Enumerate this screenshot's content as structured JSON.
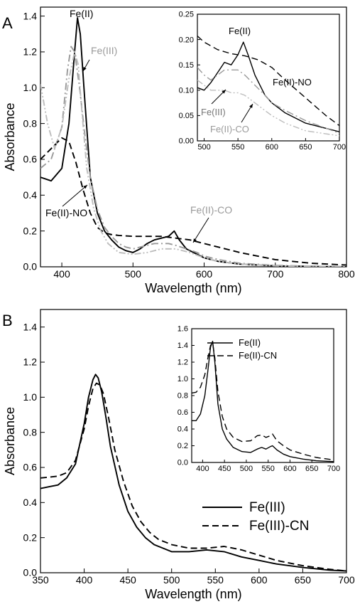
{
  "panel_labels": [
    "A",
    "B"
  ],
  "chart_data": [
    {
      "type": "line",
      "panel": "A",
      "xlabel": "Wavelength (nm)",
      "ylabel": "Absorbance",
      "xlim": [
        370,
        800
      ],
      "ylim": [
        0,
        1.45
      ],
      "xticks": [
        400,
        500,
        600,
        700,
        800
      ],
      "yticks": [
        0.0,
        0.2,
        0.4,
        0.6,
        0.8,
        1.0,
        1.2,
        1.4
      ],
      "grid": false,
      "series": [
        {
          "name": "Fe(II)",
          "color": "#000000",
          "dash": "solid",
          "x": [
            370,
            385,
            400,
            410,
            418,
            422,
            426,
            432,
            440,
            450,
            460,
            470,
            480,
            490,
            500,
            510,
            520,
            530,
            540,
            550,
            558,
            565,
            575,
            590,
            600,
            620,
            650,
            700,
            750,
            800
          ],
          "y": [
            0.5,
            0.48,
            0.55,
            0.8,
            1.2,
            1.39,
            1.3,
            0.95,
            0.5,
            0.3,
            0.2,
            0.15,
            0.11,
            0.09,
            0.08,
            0.1,
            0.13,
            0.15,
            0.16,
            0.17,
            0.2,
            0.15,
            0.1,
            0.07,
            0.05,
            0.03,
            0.015,
            0.005,
            0.002,
            0.0
          ]
        },
        {
          "name": "Fe(III)",
          "color": "#9a9a9a",
          "dash": "dashdot",
          "x": [
            370,
            385,
            400,
            408,
            413,
            418,
            425,
            432,
            440,
            450,
            460,
            470,
            480,
            490,
            500,
            510,
            520,
            530,
            540,
            550,
            560,
            575,
            590,
            600,
            620,
            650,
            700,
            750,
            800
          ],
          "y": [
            0.55,
            0.6,
            0.78,
            1.1,
            1.23,
            1.2,
            1.0,
            0.75,
            0.5,
            0.32,
            0.22,
            0.17,
            0.13,
            0.11,
            0.1,
            0.11,
            0.12,
            0.13,
            0.13,
            0.13,
            0.12,
            0.1,
            0.08,
            0.06,
            0.04,
            0.02,
            0.008,
            0.003,
            0.0
          ]
        },
        {
          "name": "Fe(II)-NO",
          "color": "#000000",
          "dash": "dashed",
          "x": [
            370,
            385,
            400,
            410,
            420,
            430,
            440,
            450,
            460,
            470,
            480,
            500,
            520,
            540,
            560,
            580,
            600,
            620,
            650,
            700,
            750,
            800
          ],
          "y": [
            0.6,
            0.66,
            0.72,
            0.7,
            0.58,
            0.43,
            0.3,
            0.22,
            0.19,
            0.18,
            0.175,
            0.17,
            0.17,
            0.17,
            0.16,
            0.15,
            0.13,
            0.11,
            0.08,
            0.04,
            0.02,
            0.01
          ]
        },
        {
          "name": "Fe(II)-CO",
          "color": "#bdbdbd",
          "dash": "dotdotdash",
          "x": [
            370,
            380,
            390,
            400,
            410,
            418,
            423,
            428,
            435,
            445,
            455,
            465,
            480,
            500,
            520,
            540,
            560,
            580,
            600,
            620,
            650,
            700,
            750,
            800
          ],
          "y": [
            1.02,
            0.8,
            0.66,
            0.78,
            1.05,
            1.2,
            1.13,
            0.88,
            0.55,
            0.32,
            0.2,
            0.13,
            0.08,
            0.07,
            0.08,
            0.1,
            0.1,
            0.08,
            0.05,
            0.03,
            0.015,
            0.005,
            0.002,
            0.0
          ]
        }
      ],
      "annotations": [
        "Fe(II)",
        "Fe(III)",
        "Fe(II)-NO",
        "Fe(II)-CO"
      ]
    },
    {
      "type": "line",
      "panel": "A-inset",
      "xlim": [
        490,
        700
      ],
      "ylim": [
        0,
        0.25
      ],
      "xticks": [
        500,
        550,
        600,
        650,
        700
      ],
      "yticks": [
        0.0,
        0.05,
        0.1,
        0.15,
        0.2,
        0.25
      ],
      "series": [
        {
          "name": "Fe(II)",
          "color": "#000000",
          "dash": "solid",
          "x": [
            490,
            500,
            510,
            520,
            530,
            540,
            550,
            558,
            565,
            575,
            590,
            600,
            620,
            650,
            700
          ],
          "y": [
            0.105,
            0.1,
            0.115,
            0.135,
            0.155,
            0.15,
            0.17,
            0.195,
            0.17,
            0.13,
            0.09,
            0.075,
            0.055,
            0.035,
            0.018
          ]
        },
        {
          "name": "Fe(II)-NO",
          "color": "#000000",
          "dash": "dashed",
          "x": [
            490,
            500,
            520,
            540,
            560,
            580,
            600,
            620,
            650,
            680,
            700
          ],
          "y": [
            0.207,
            0.195,
            0.18,
            0.172,
            0.168,
            0.16,
            0.145,
            0.12,
            0.085,
            0.05,
            0.03
          ]
        },
        {
          "name": "Fe(III)",
          "color": "#9a9a9a",
          "dash": "dashdot",
          "x": [
            490,
            500,
            510,
            520,
            530,
            540,
            550,
            560,
            575,
            590,
            600,
            620,
            650,
            700
          ],
          "y": [
            0.145,
            0.13,
            0.12,
            0.13,
            0.14,
            0.14,
            0.14,
            0.13,
            0.11,
            0.09,
            0.075,
            0.06,
            0.04,
            0.015
          ]
        },
        {
          "name": "Fe(II)-CO",
          "color": "#bdbdbd",
          "dash": "dotdotdash",
          "x": [
            490,
            500,
            510,
            520,
            530,
            540,
            550,
            560,
            575,
            590,
            600,
            620,
            650,
            700
          ],
          "y": [
            0.12,
            0.11,
            0.1,
            0.1,
            0.1,
            0.095,
            0.095,
            0.09,
            0.075,
            0.06,
            0.05,
            0.035,
            0.02,
            0.01
          ]
        }
      ],
      "annotations": [
        "Fe(II)",
        "Fe(II)-NO",
        "Fe(III)",
        "Fe(II)-CO"
      ]
    },
    {
      "type": "line",
      "panel": "B",
      "xlabel": "Wavelength (nm)",
      "ylabel": "Absorbance",
      "xlim": [
        350,
        700
      ],
      "ylim": [
        0,
        1.5
      ],
      "xticks": [
        350,
        400,
        450,
        500,
        550,
        600,
        650,
        700
      ],
      "yticks": [
        0.0,
        0.2,
        0.4,
        0.6,
        0.8,
        1.0,
        1.2,
        1.4
      ],
      "legend_position": "bottom-right",
      "series": [
        {
          "name": "Fe(III)",
          "color": "#000000",
          "dash": "solid",
          "x": [
            350,
            360,
            370,
            380,
            390,
            400,
            405,
            410,
            413,
            416,
            420,
            425,
            430,
            440,
            450,
            460,
            470,
            480,
            500,
            520,
            540,
            560,
            580,
            600,
            620,
            650,
            680,
            700
          ],
          "y": [
            0.48,
            0.49,
            0.5,
            0.54,
            0.62,
            0.85,
            1.0,
            1.1,
            1.13,
            1.11,
            1.03,
            0.88,
            0.72,
            0.5,
            0.35,
            0.26,
            0.2,
            0.16,
            0.12,
            0.12,
            0.13,
            0.12,
            0.09,
            0.07,
            0.05,
            0.03,
            0.015,
            0.01
          ]
        },
        {
          "name": "Fe(III)-CN",
          "color": "#000000",
          "dash": "dashed",
          "x": [
            350,
            360,
            370,
            380,
            390,
            400,
            405,
            410,
            414,
            418,
            422,
            428,
            435,
            445,
            455,
            465,
            475,
            485,
            500,
            520,
            540,
            560,
            580,
            600,
            620,
            650,
            680,
            700
          ],
          "y": [
            0.54,
            0.545,
            0.55,
            0.57,
            0.64,
            0.82,
            0.95,
            1.05,
            1.08,
            1.07,
            1.02,
            0.88,
            0.7,
            0.52,
            0.38,
            0.29,
            0.23,
            0.19,
            0.16,
            0.14,
            0.14,
            0.15,
            0.13,
            0.1,
            0.07,
            0.04,
            0.02,
            0.01
          ]
        }
      ]
    },
    {
      "type": "line",
      "panel": "B-inset",
      "xlim": [
        375,
        700
      ],
      "ylim": [
        0,
        1.6
      ],
      "xticks": [
        400,
        450,
        500,
        550,
        600,
        650,
        700
      ],
      "yticks": [
        0.0,
        0.2,
        0.4,
        0.6,
        0.8,
        1.0,
        1.2,
        1.4,
        1.6
      ],
      "legend_position": "top-right",
      "series": [
        {
          "name": "Fe(II)",
          "color": "#000000",
          "dash": "solid",
          "x": [
            375,
            385,
            395,
            405,
            412,
            418,
            423,
            428,
            435,
            445,
            455,
            470,
            490,
            510,
            525,
            535,
            545,
            555,
            560,
            570,
            585,
            600,
            630,
            660,
            700
          ],
          "y": [
            0.5,
            0.5,
            0.58,
            0.8,
            1.1,
            1.38,
            1.45,
            1.2,
            0.7,
            0.4,
            0.28,
            0.18,
            0.13,
            0.12,
            0.16,
            0.18,
            0.16,
            0.19,
            0.2,
            0.15,
            0.1,
            0.07,
            0.04,
            0.02,
            0.01
          ]
        },
        {
          "name": "Fe(II)-CN",
          "color": "#000000",
          "dash": "dashed",
          "x": [
            375,
            385,
            395,
            405,
            412,
            418,
            423,
            428,
            435,
            445,
            455,
            470,
            490,
            510,
            525,
            535,
            545,
            555,
            560,
            570,
            585,
            600,
            630,
            660,
            700
          ],
          "y": [
            0.83,
            0.84,
            0.9,
            1.05,
            1.25,
            1.4,
            1.43,
            1.25,
            0.85,
            0.55,
            0.4,
            0.3,
            0.25,
            0.26,
            0.32,
            0.33,
            0.3,
            0.32,
            0.34,
            0.26,
            0.2,
            0.15,
            0.1,
            0.06,
            0.03
          ]
        }
      ]
    }
  ]
}
